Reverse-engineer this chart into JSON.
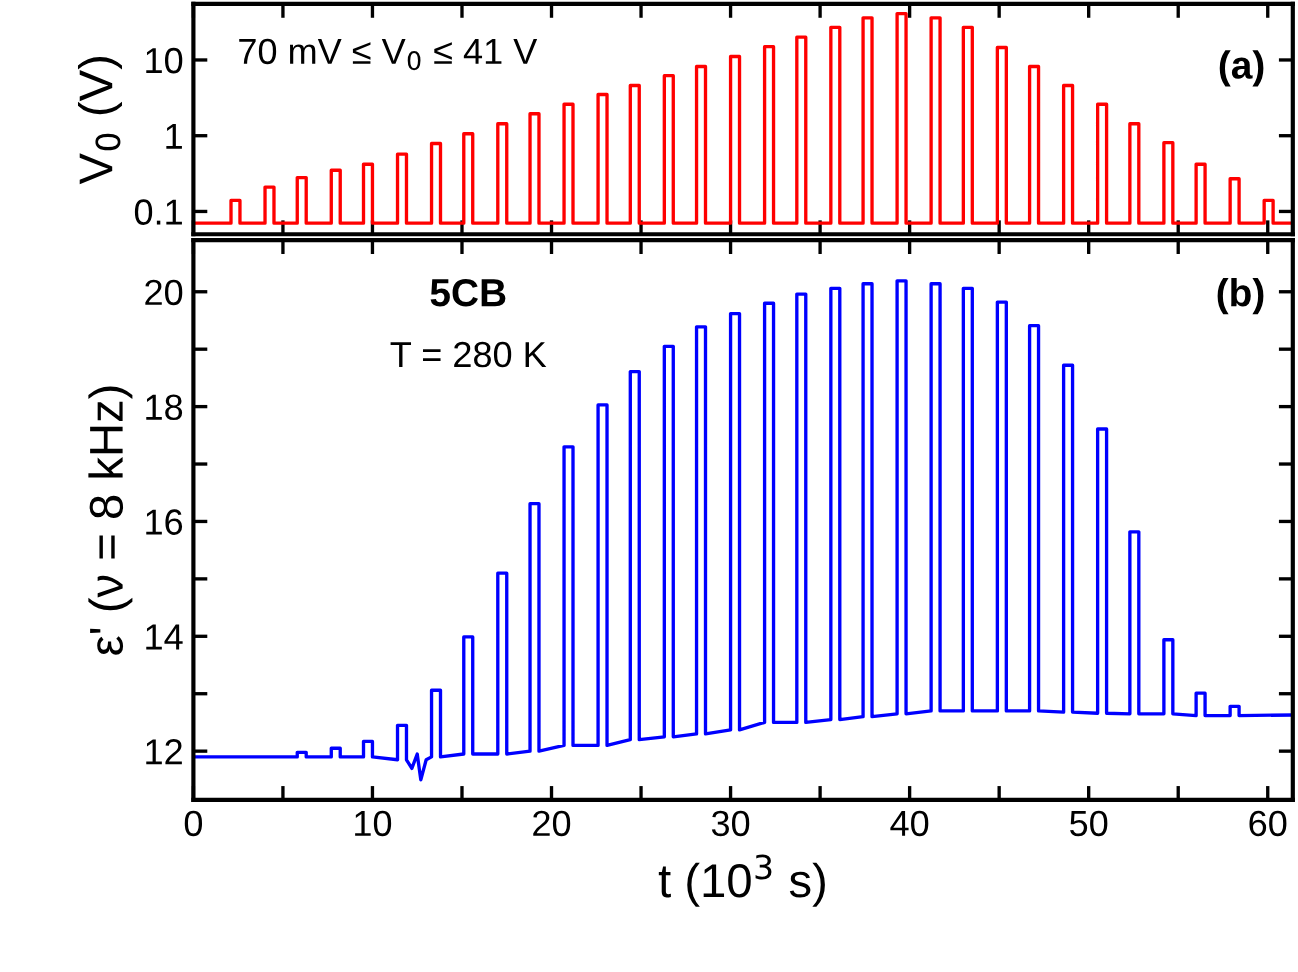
{
  "chart_data": [
    {
      "type": "line",
      "ylabel": "V$_{0}$ (V)",
      "log": "y",
      "tick_labels": "y",
      "xlim": [
        0,
        61.4
      ],
      "ylim": [
        0.05,
        55
      ],
      "xticks": [
        {
          "value": 0,
          "label": null
        },
        {
          "value": 5,
          "label": null
        },
        {
          "value": 10,
          "label": null
        },
        {
          "value": 15,
          "label": null
        },
        {
          "value": 20,
          "label": null
        },
        {
          "value": 25,
          "label": null
        },
        {
          "value": 30,
          "label": null
        },
        {
          "value": 35,
          "label": null
        },
        {
          "value": 40,
          "label": null
        },
        {
          "value": 45,
          "label": null
        },
        {
          "value": 50,
          "label": null
        },
        {
          "value": 55,
          "label": null
        },
        {
          "value": 60,
          "label": null
        }
      ],
      "yticks": [
        0.1,
        1,
        10
      ],
      "annotations": [
        "70 mV ≤ V$_{0}$ ≤ 41 V",
        "(a)"
      ],
      "series": [
        {
          "color": "#ff0000",
          "x": [
            0,
            2.1,
            2.1,
            2.6,
            2.6,
            4.0,
            4.0,
            4.5,
            4.5,
            5.8,
            5.8,
            6.3,
            6.3,
            7.7,
            7.7,
            8.2,
            8.2,
            9.5,
            9.5,
            10.0,
            10.0,
            11.4,
            11.4,
            11.9,
            11.9,
            13.3,
            13.3,
            13.8,
            13.8,
            15.1,
            15.1,
            15.6,
            15.6,
            17.0,
            17.0,
            17.5,
            17.5,
            18.8,
            18.8,
            19.3,
            19.3,
            20.7,
            20.7,
            21.2,
            21.2,
            22.6,
            22.6,
            23.1,
            23.1,
            24.4,
            24.4,
            24.9,
            24.9,
            26.3,
            26.3,
            26.8,
            26.8,
            28.1,
            28.1,
            28.6,
            28.6,
            30.0,
            30.0,
            30.5,
            30.5,
            31.9,
            31.9,
            32.4,
            32.4,
            33.7,
            33.7,
            34.2,
            34.2,
            35.6,
            35.6,
            36.1,
            36.1,
            37.4,
            37.4,
            37.9,
            37.9,
            39.3,
            39.3,
            39.8,
            39.8,
            41.2,
            41.2,
            41.7,
            41.7,
            43.0,
            43.0,
            43.5,
            43.5,
            44.9,
            44.9,
            45.4,
            45.4,
            46.7,
            46.7,
            47.2,
            47.2,
            48.6,
            48.6,
            49.1,
            49.1,
            50.5,
            50.5,
            51.0,
            51.0,
            52.3,
            52.3,
            52.8,
            52.8,
            54.2,
            54.2,
            54.7,
            54.7,
            56.0,
            56.0,
            56.5,
            56.5,
            57.9,
            57.9,
            58.4,
            58.4,
            59.8,
            59.8,
            60.3,
            60.3,
            61.4
          ],
          "values": [
            0.07,
            0.07,
            0.14,
            0.14,
            0.07,
            0.07,
            0.21,
            0.21,
            0.07,
            0.07,
            0.28,
            0.28,
            0.07,
            0.07,
            0.35,
            0.35,
            0.07,
            0.07,
            0.42,
            0.42,
            0.07,
            0.07,
            0.57,
            0.57,
            0.07,
            0.07,
            0.79,
            0.79,
            0.07,
            0.07,
            1.06,
            1.06,
            0.07,
            0.07,
            1.44,
            1.44,
            0.07,
            0.07,
            1.95,
            1.95,
            0.07,
            0.07,
            2.6,
            2.6,
            0.07,
            0.07,
            3.5,
            3.5,
            0.07,
            0.07,
            4.6,
            4.6,
            0.07,
            0.07,
            6.2,
            6.2,
            0.07,
            0.07,
            8.2,
            8.2,
            0.07,
            0.07,
            11.1,
            11.1,
            0.07,
            0.07,
            15,
            15,
            0.07,
            0.07,
            20,
            20,
            0.07,
            0.07,
            27,
            27,
            0.07,
            0.07,
            36,
            36,
            0.07,
            0.07,
            41,
            41,
            0.07,
            0.07,
            36,
            36,
            0.07,
            0.07,
            27,
            27,
            0.07,
            0.07,
            14.6,
            14.6,
            0.07,
            0.07,
            8.2,
            8.2,
            0.07,
            0.07,
            4.6,
            4.6,
            0.07,
            0.07,
            2.6,
            2.6,
            0.07,
            0.07,
            1.44,
            1.44,
            0.07,
            0.07,
            0.81,
            0.81,
            0.07,
            0.07,
            0.42,
            0.42,
            0.07,
            0.07,
            0.27,
            0.27,
            0.07,
            0.07,
            0.14,
            0.14,
            0.07,
            0.07
          ]
        }
      ]
    },
    {
      "type": "line",
      "xlabel": "t (10$^{3}$ s)",
      "ylabel": "ε' (ν = 8 kHz)",
      "xlim": [
        0,
        61.4
      ],
      "ylim": [
        11.15,
        20.9
      ],
      "xticks": [
        0,
        {
          "value": 5,
          "label": null
        },
        10,
        {
          "value": 15,
          "label": null
        },
        20,
        {
          "value": 25,
          "label": null
        },
        30,
        {
          "value": 35,
          "label": null
        },
        40,
        {
          "value": 45,
          "label": null
        },
        50,
        {
          "value": 55,
          "label": null
        },
        60
      ],
      "yticks": [
        12,
        {
          "value": 13,
          "label": null
        },
        14,
        {
          "value": 15,
          "label": null
        },
        16,
        {
          "value": 17,
          "label": null
        },
        18,
        {
          "value": 19,
          "label": null
        },
        20
      ],
      "annotations": [
        "5CB",
        "T = 280 K",
        "(b)"
      ],
      "series": [
        {
          "color": "#0000ff",
          "x": [
            0,
            5.8,
            5.8,
            6.3,
            6.3,
            7.7,
            7.7,
            8.2,
            8.2,
            9.5,
            9.5,
            10.0,
            10.0,
            11.4,
            11.4,
            11.9,
            11.9,
            12.2,
            12.5,
            12.7,
            13.0,
            13.3,
            13.3,
            13.8,
            13.8,
            15.1,
            15.1,
            15.6,
            15.6,
            17.0,
            17.0,
            17.5,
            17.5,
            18.8,
            18.8,
            19.3,
            19.3,
            20.7,
            20.7,
            21.2,
            21.2,
            22.6,
            22.6,
            23.1,
            23.1,
            24.4,
            24.4,
            24.9,
            24.9,
            26.3,
            26.3,
            26.8,
            26.8,
            28.1,
            28.1,
            28.6,
            28.6,
            30.0,
            30.0,
            30.5,
            30.5,
            31.9,
            31.9,
            32.4,
            32.4,
            33.7,
            33.7,
            34.2,
            34.2,
            35.6,
            35.6,
            36.1,
            36.1,
            37.4,
            37.4,
            37.9,
            37.9,
            39.3,
            39.3,
            39.8,
            39.8,
            41.2,
            41.2,
            41.7,
            41.7,
            43.0,
            43.0,
            43.5,
            43.5,
            44.9,
            44.9,
            45.4,
            45.4,
            46.7,
            46.7,
            47.2,
            47.2,
            48.6,
            48.6,
            49.1,
            49.1,
            50.5,
            50.5,
            51.0,
            51.0,
            52.3,
            52.3,
            52.8,
            52.8,
            54.2,
            54.2,
            54.7,
            54.7,
            56.0,
            56.0,
            56.5,
            56.5,
            57.9,
            57.9,
            58.4,
            58.4,
            61.4
          ],
          "values": [
            11.9,
            11.9,
            11.98,
            11.98,
            11.9,
            11.9,
            12.05,
            12.05,
            11.9,
            11.9,
            12.17,
            12.17,
            11.9,
            11.85,
            12.45,
            12.45,
            11.85,
            11.7,
            11.95,
            11.5,
            11.85,
            11.9,
            13.06,
            13.06,
            11.9,
            11.95,
            13.99,
            13.99,
            11.95,
            11.95,
            15.1,
            15.1,
            11.95,
            12.0,
            16.31,
            16.31,
            12.0,
            12.1,
            17.3,
            17.3,
            12.1,
            12.1,
            18.03,
            18.03,
            12.1,
            12.2,
            18.61,
            18.61,
            12.2,
            12.25,
            19.05,
            19.05,
            12.25,
            12.3,
            19.39,
            19.39,
            12.3,
            12.37,
            19.62,
            19.62,
            12.37,
            12.5,
            19.8,
            19.8,
            12.5,
            12.5,
            19.96,
            19.96,
            12.5,
            12.55,
            20.06,
            20.06,
            12.55,
            12.6,
            20.14,
            20.14,
            12.6,
            12.65,
            20.19,
            20.19,
            12.65,
            12.7,
            20.14,
            20.14,
            12.7,
            12.7,
            20.06,
            20.06,
            12.7,
            12.7,
            19.82,
            19.82,
            12.7,
            12.7,
            19.41,
            19.41,
            12.7,
            12.68,
            18.72,
            18.72,
            12.68,
            12.66,
            17.61,
            17.61,
            12.66,
            12.65,
            15.82,
            15.82,
            12.65,
            12.65,
            13.94,
            13.94,
            12.65,
            12.62,
            13.01,
            13.01,
            12.62,
            12.62,
            12.78,
            12.78,
            12.62,
            12.63
          ]
        }
      ]
    }
  ]
}
